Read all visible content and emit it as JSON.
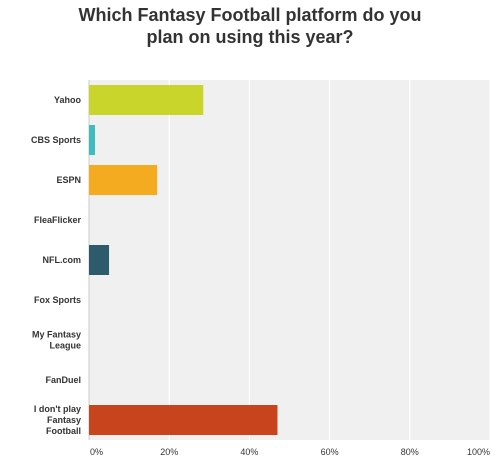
{
  "chart_data": {
    "type": "bar",
    "orientation": "horizontal",
    "title": "Which Fantasy Football platform do you plan on using this year?",
    "title_lines": [
      "Which Fantasy Football platform do you",
      "plan on using this year?"
    ],
    "categories": [
      "Yahoo",
      "CBS Sports",
      "ESPN",
      "FleaFlicker",
      "NFL.com",
      "Fox Sports",
      "My Fantasy League",
      "FanDuel",
      "I don't play Fantasy Football"
    ],
    "category_label_lines": [
      [
        "Yahoo"
      ],
      [
        "CBS Sports"
      ],
      [
        "ESPN"
      ],
      [
        "FleaFlicker"
      ],
      [
        "NFL.com"
      ],
      [
        "Fox Sports"
      ],
      [
        "My Fantasy",
        "League"
      ],
      [
        "FanDuel"
      ],
      [
        "I don't play",
        "Fantasy",
        "Football"
      ]
    ],
    "values": [
      28.5,
      1.5,
      17,
      0,
      5,
      0,
      0,
      0,
      47
    ],
    "colors": [
      "#cad52b",
      "#3fbcc0",
      "#f5ab20",
      "#bbbbbb",
      "#2e5b6b",
      "#bbbbbb",
      "#bbbbbb",
      "#bbbbbb",
      "#c8441c"
    ],
    "xlim": [
      0,
      100
    ],
    "x_ticks": [
      "0%",
      "20%",
      "40%",
      "60%",
      "80%",
      "100%"
    ],
    "x_tick_values": [
      0,
      20,
      40,
      60,
      80,
      100
    ],
    "grid": true,
    "plot_background": "#f0f0f0",
    "gridline_color": "#ffffff"
  }
}
